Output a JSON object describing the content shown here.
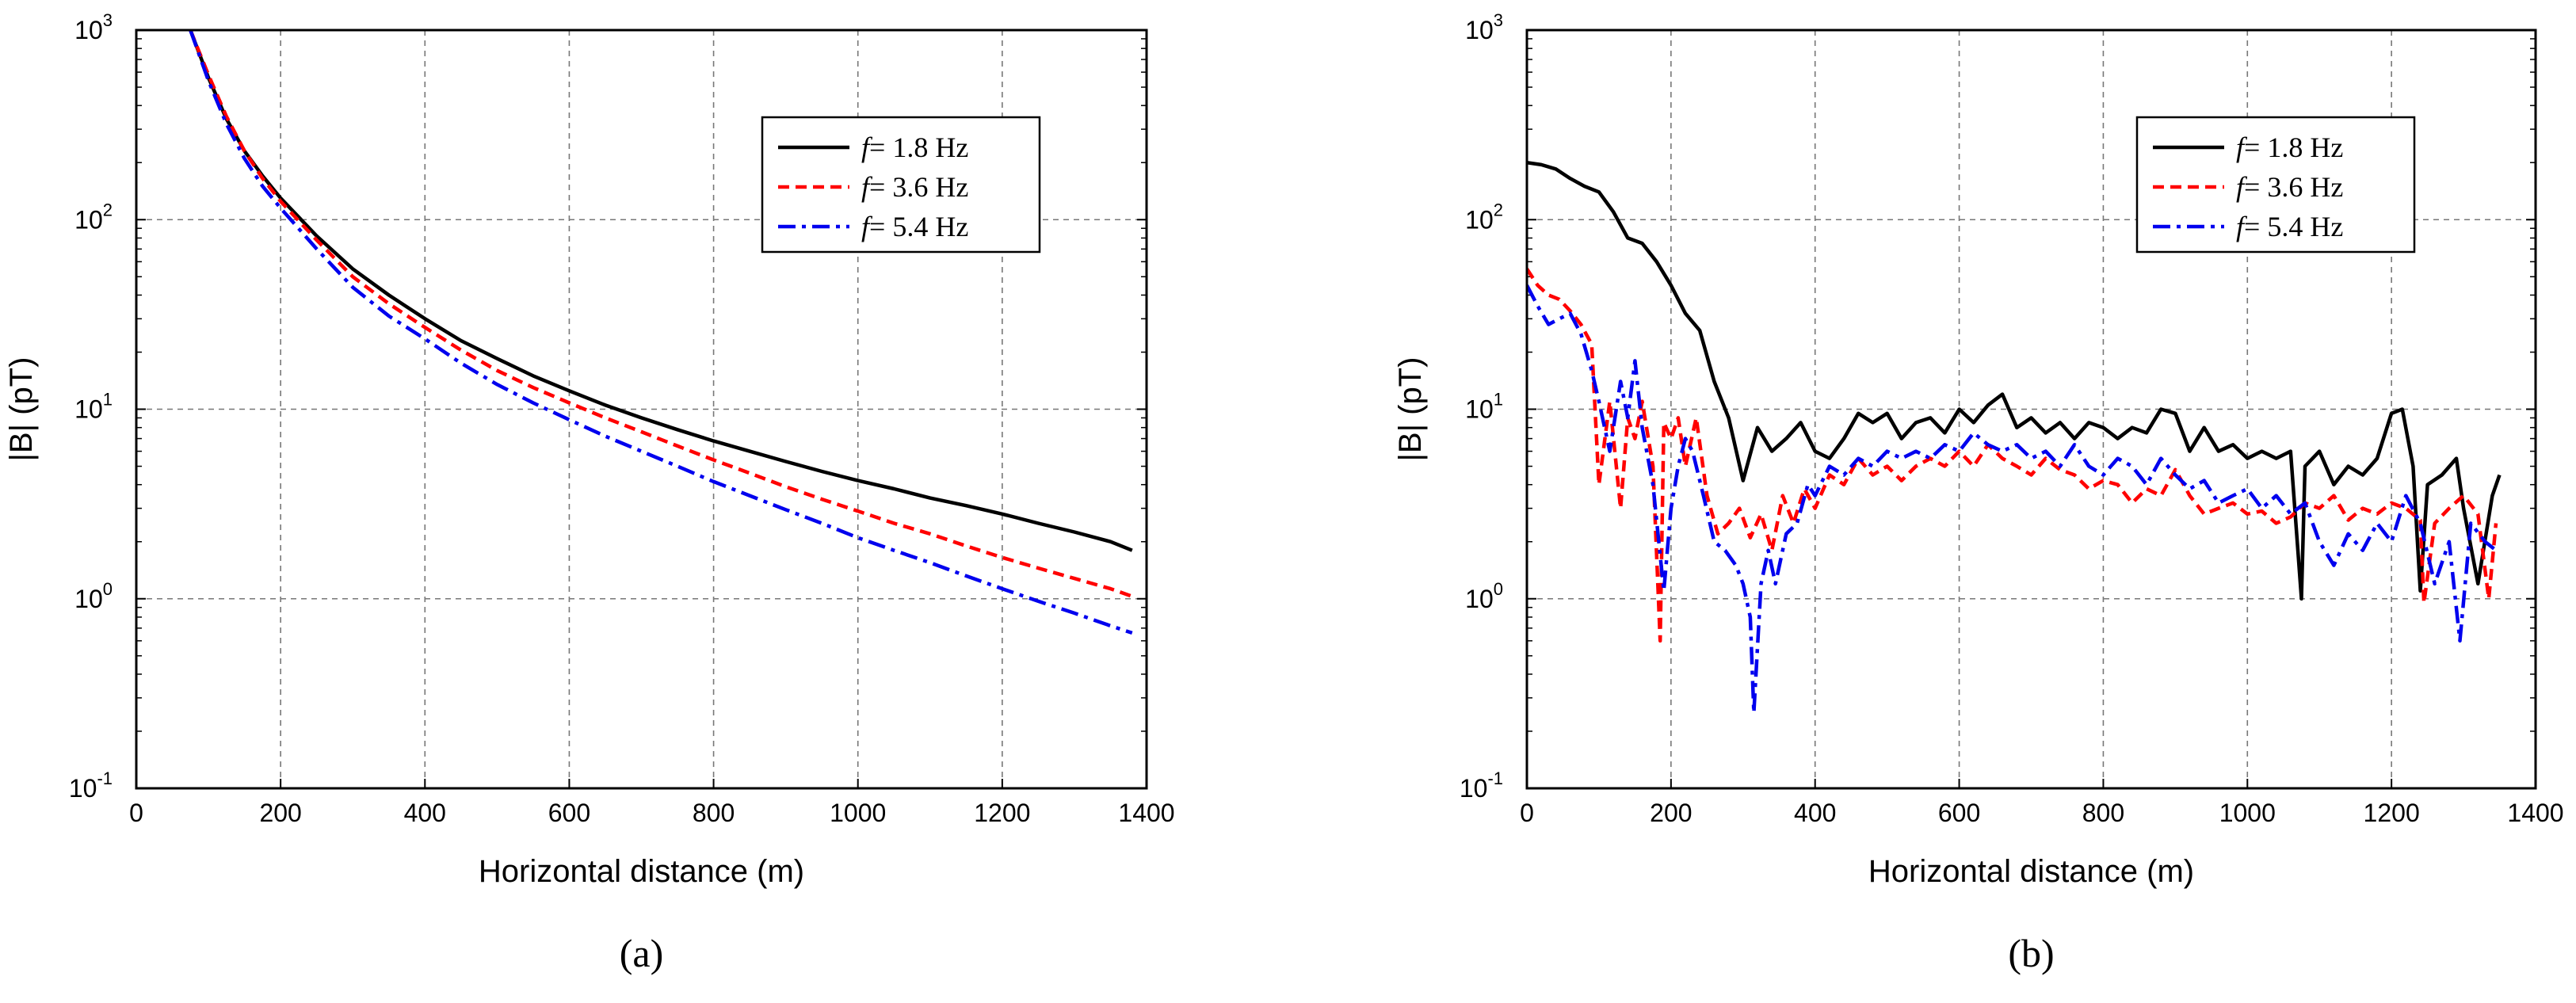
{
  "chart_data": [
    {
      "type": "line",
      "panel_label": "(a)",
      "xlabel": "Horizontal distance (m)",
      "ylabel": "|B| (pT)",
      "xlim": [
        0,
        1400
      ],
      "ylim": [
        0.1,
        1000
      ],
      "yscale": "log",
      "grid": true,
      "legend_position": "top-right",
      "x_ticks": [
        "0",
        "200",
        "400",
        "600",
        "800",
        "1000",
        "1200",
        "1400"
      ],
      "y_ticks": [
        {
          "base": "10",
          "exp": "-1"
        },
        {
          "base": "10",
          "exp": "0"
        },
        {
          "base": "10",
          "exp": "1"
        },
        {
          "base": "10",
          "exp": "2"
        },
        {
          "base": "10",
          "exp": "3"
        }
      ],
      "series": [
        {
          "name": "f = 1.8 Hz",
          "name_italic": "f",
          "name_rest": "= 1.8 Hz",
          "color": "#000000",
          "dash": "solid",
          "x": [
            75,
            100,
            125,
            150,
            175,
            200,
            250,
            300,
            350,
            400,
            450,
            500,
            550,
            600,
            650,
            700,
            750,
            800,
            850,
            900,
            950,
            1000,
            1050,
            1100,
            1150,
            1200,
            1250,
            1300,
            1350,
            1380
          ],
          "y": [
            1000,
            560,
            340,
            230,
            170,
            130,
            82,
            55,
            40,
            30,
            23,
            18.5,
            15,
            12.5,
            10.5,
            9,
            7.8,
            6.8,
            6,
            5.3,
            4.7,
            4.2,
            3.8,
            3.4,
            3.1,
            2.8,
            2.5,
            2.25,
            2.0,
            1.8
          ]
        },
        {
          "name": "f = 3.6 Hz",
          "name_italic": "f",
          "name_rest": "= 3.6 Hz",
          "color": "#ff0000",
          "dash": "dashed",
          "x": [
            75,
            100,
            125,
            150,
            175,
            200,
            250,
            300,
            350,
            400,
            450,
            500,
            550,
            600,
            650,
            700,
            750,
            800,
            850,
            900,
            950,
            1000,
            1050,
            1100,
            1150,
            1200,
            1250,
            1300,
            1350,
            1380
          ],
          "y": [
            1000,
            580,
            350,
            230,
            165,
            125,
            78,
            50,
            36,
            27,
            20.5,
            16,
            13,
            10.8,
            9,
            7.6,
            6.4,
            5.4,
            4.6,
            3.9,
            3.35,
            2.9,
            2.5,
            2.2,
            1.9,
            1.65,
            1.45,
            1.28,
            1.13,
            1.03
          ]
        },
        {
          "name": "f = 5.4 Hz",
          "name_italic": "f",
          "name_rest": "= 5.4 Hz",
          "color": "#0000ee",
          "dash": "dashdot",
          "x": [
            75,
            100,
            125,
            150,
            175,
            200,
            250,
            300,
            350,
            400,
            450,
            500,
            550,
            600,
            650,
            700,
            750,
            800,
            850,
            900,
            950,
            1000,
            1050,
            1100,
            1150,
            1200,
            1250,
            1300,
            1350,
            1380
          ],
          "y": [
            1000,
            540,
            320,
            210,
            150,
            115,
            70,
            44,
            31,
            23.5,
            17.5,
            13.5,
            10.8,
            8.8,
            7.2,
            6,
            5,
            4.15,
            3.5,
            2.95,
            2.5,
            2.1,
            1.8,
            1.55,
            1.32,
            1.13,
            0.97,
            0.84,
            0.72,
            0.66
          ]
        }
      ]
    },
    {
      "type": "line",
      "panel_label": "(b)",
      "xlabel": "Horizontal distance (m)",
      "ylabel": "|B| (pT)",
      "xlim": [
        0,
        1400
      ],
      "ylim": [
        0.1,
        1000
      ],
      "yscale": "log",
      "grid": true,
      "legend_position": "top-right",
      "x_ticks": [
        "0",
        "200",
        "400",
        "600",
        "800",
        "1000",
        "1200",
        "1400"
      ],
      "y_ticks": [
        {
          "base": "10",
          "exp": "-1"
        },
        {
          "base": "10",
          "exp": "0"
        },
        {
          "base": "10",
          "exp": "1"
        },
        {
          "base": "10",
          "exp": "2"
        },
        {
          "base": "10",
          "exp": "3"
        }
      ],
      "series": [
        {
          "name": "f = 1.8 Hz",
          "name_italic": "f",
          "name_rest": "= 1.8 Hz",
          "color": "#000000",
          "dash": "solid",
          "x": [
            0,
            20,
            40,
            60,
            80,
            100,
            120,
            140,
            160,
            180,
            200,
            220,
            240,
            260,
            280,
            300,
            320,
            340,
            360,
            380,
            400,
            420,
            440,
            460,
            480,
            500,
            520,
            540,
            560,
            580,
            600,
            620,
            640,
            660,
            680,
            700,
            720,
            740,
            760,
            780,
            800,
            820,
            840,
            860,
            880,
            900,
            920,
            940,
            960,
            980,
            1000,
            1020,
            1040,
            1060,
            1075,
            1080,
            1100,
            1120,
            1140,
            1160,
            1180,
            1200,
            1215,
            1230,
            1240,
            1250,
            1270,
            1290,
            1300,
            1320,
            1340,
            1350
          ],
          "y": [
            200,
            195,
            185,
            165,
            150,
            140,
            110,
            80,
            75,
            60,
            45,
            32,
            26,
            14,
            9,
            4.2,
            8,
            6,
            7,
            8.5,
            6,
            5.5,
            7,
            9.5,
            8.5,
            9.5,
            7,
            8.5,
            9,
            7.5,
            10,
            8.5,
            10.5,
            12,
            8,
            9,
            7.5,
            8.5,
            7,
            8.5,
            8,
            7,
            8,
            7.5,
            10,
            9.5,
            6,
            8,
            6,
            6.5,
            5.5,
            6,
            5.5,
            6,
            1,
            5,
            6,
            4,
            5,
            4.5,
            5.5,
            9.5,
            10,
            5,
            1.1,
            4,
            4.5,
            5.5,
            3,
            1.2,
            3.5,
            4.5
          ]
        },
        {
          "name": "f = 3.6 Hz",
          "name_italic": "f",
          "name_rest": "= 3.6 Hz",
          "color": "#ff0000",
          "dash": "dashed",
          "x": [
            0,
            15,
            30,
            45,
            60,
            75,
            90,
            100,
            115,
            130,
            140,
            150,
            160,
            175,
            185,
            190,
            200,
            210,
            220,
            235,
            250,
            265,
            280,
            295,
            310,
            325,
            340,
            355,
            370,
            385,
            400,
            420,
            440,
            460,
            480,
            500,
            520,
            540,
            560,
            580,
            600,
            620,
            640,
            660,
            680,
            700,
            720,
            740,
            760,
            780,
            800,
            820,
            840,
            860,
            880,
            900,
            920,
            940,
            960,
            980,
            1000,
            1020,
            1040,
            1060,
            1080,
            1100,
            1120,
            1140,
            1160,
            1180,
            1200,
            1220,
            1240,
            1245,
            1260,
            1280,
            1300,
            1320,
            1335,
            1345
          ],
          "y": [
            55,
            45,
            40,
            38,
            33,
            28,
            22,
            4,
            11,
            3,
            9,
            7,
            11,
            5,
            0.6,
            8.5,
            7,
            9,
            5,
            9,
            3.5,
            2.2,
            2.5,
            3,
            2.1,
            2.8,
            1.8,
            3.5,
            2.5,
            3.8,
            3,
            4.5,
            4,
            5.5,
            4.5,
            5,
            4.2,
            5,
            5.5,
            5,
            6,
            5,
            6.5,
            5.5,
            5,
            4.5,
            5.5,
            4.8,
            4.5,
            3.8,
            4.2,
            4,
            3.2,
            3.8,
            3.5,
            4.8,
            3.5,
            2.8,
            3,
            3.2,
            2.8,
            2.9,
            2.5,
            2.7,
            3.2,
            3,
            3.5,
            2.6,
            3,
            2.8,
            3.2,
            3,
            2.6,
            0.95,
            2.5,
            3,
            3.5,
            2.8,
            1,
            2.5
          ]
        },
        {
          "name": "f = 5.4 Hz",
          "name_italic": "f",
          "name_rest": "= 5.4 Hz",
          "color": "#0000ee",
          "dash": "dashdot",
          "x": [
            0,
            15,
            30,
            45,
            60,
            75,
            90,
            100,
            115,
            130,
            140,
            150,
            160,
            175,
            190,
            200,
            210,
            220,
            230,
            245,
            260,
            275,
            290,
            300,
            310,
            315,
            325,
            335,
            345,
            360,
            375,
            390,
            400,
            420,
            440,
            460,
            480,
            500,
            520,
            540,
            560,
            580,
            600,
            620,
            640,
            660,
            680,
            700,
            720,
            740,
            760,
            780,
            800,
            820,
            840,
            860,
            880,
            900,
            920,
            940,
            960,
            980,
            1000,
            1020,
            1040,
            1060,
            1080,
            1100,
            1120,
            1140,
            1160,
            1180,
            1200,
            1220,
            1240,
            1260,
            1280,
            1295,
            1310,
            1330,
            1345
          ],
          "y": [
            45,
            35,
            28,
            30,
            32,
            25,
            16,
            11,
            6,
            14,
            9,
            18,
            8,
            4,
            1.1,
            3,
            5,
            7,
            6,
            3.5,
            2,
            1.8,
            1.5,
            1.2,
            0.8,
            0.25,
            1.2,
            1.8,
            1.2,
            2.2,
            2.5,
            4,
            3.5,
            5,
            4.5,
            5.5,
            5,
            6,
            5.5,
            6,
            5.5,
            6.5,
            6,
            7.5,
            6.5,
            6,
            6.5,
            5.5,
            6,
            5,
            6.5,
            5,
            4.5,
            5.5,
            5,
            4,
            5.5,
            4.5,
            3.8,
            4.2,
            3.2,
            3.5,
            3.8,
            3,
            3.5,
            2.8,
            3.2,
            2,
            1.5,
            2.2,
            1.8,
            2.5,
            2,
            3.5,
            2.5,
            1.2,
            2,
            0.6,
            2.5,
            2,
            1.8
          ]
        }
      ]
    }
  ]
}
